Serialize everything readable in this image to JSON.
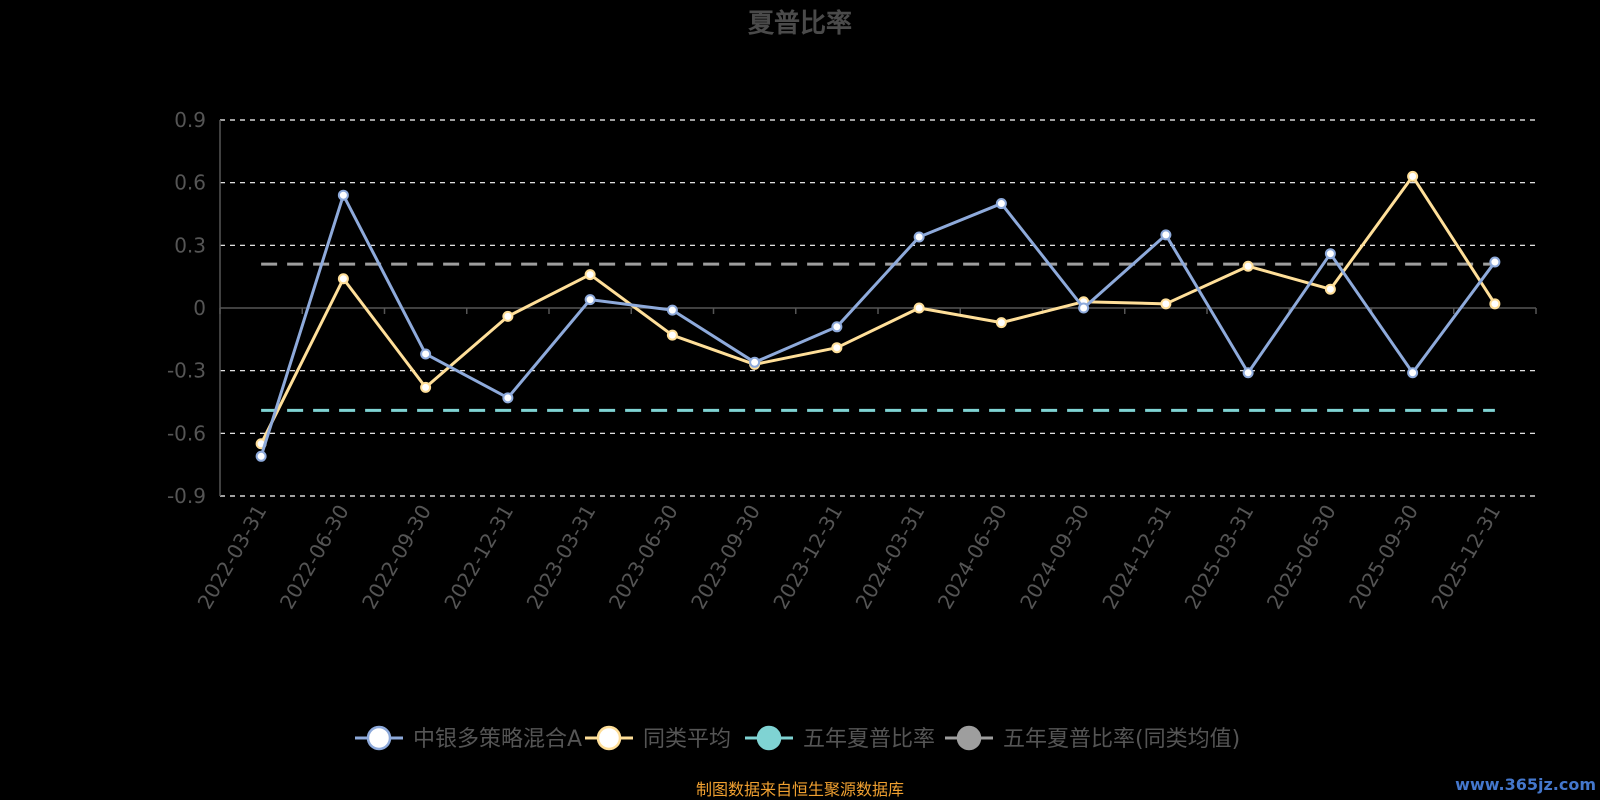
{
  "chart_data": {
    "type": "line",
    "title": "夏普比率",
    "categories": [
      "2022-03-31",
      "2022-06-30",
      "2022-09-30",
      "2022-12-31",
      "2023-03-31",
      "2023-06-30",
      "2023-09-30",
      "2023-12-31",
      "2024-03-31",
      "2024-06-30",
      "2024-09-30",
      "2024-12-31",
      "2025-03-31",
      "2025-06-30",
      "2025-09-30",
      "2025-12-31"
    ],
    "y_ticks": [
      "0.9",
      "0.6",
      "0.3",
      "0",
      "-0.3",
      "-0.6",
      "-0.9"
    ],
    "ylim": [
      -0.9,
      0.9
    ],
    "grid": true,
    "legend_position": "bottom",
    "series": [
      {
        "name": "中银多策略混合A",
        "color": "#8eaadb",
        "values": [
          -0.71,
          0.54,
          -0.22,
          -0.43,
          0.04,
          -0.01,
          -0.26,
          -0.09,
          0.34,
          0.5,
          0.0,
          0.35,
          -0.31,
          0.26,
          -0.31,
          0.22
        ]
      },
      {
        "name": "同类平均",
        "color": "#ffdf99",
        "values": [
          -0.65,
          0.14,
          -0.38,
          -0.04,
          0.16,
          -0.13,
          -0.27,
          -0.19,
          0.0,
          -0.07,
          0.03,
          0.02,
          0.2,
          0.09,
          0.63,
          0.02
        ]
      }
    ],
    "reference_lines": [
      {
        "name": "五年夏普比率",
        "color": "#7fd3d3",
        "value": -0.49
      },
      {
        "name": "五年夏普比率(同类均值)",
        "color": "#9e9e9e",
        "value": 0.21
      }
    ]
  },
  "legend": [
    {
      "label": "中银多策略混合A",
      "color": "#8eaadb",
      "fill": "#ffffff"
    },
    {
      "label": "同类平均",
      "color": "#ffdf99",
      "fill": "#ffffff"
    },
    {
      "label": "五年夏普比率",
      "color": "#7fd3d3",
      "fill": "#7fd3d3"
    },
    {
      "label": "五年夏普比率(同类均值)",
      "color": "#9e9e9e",
      "fill": "#9e9e9e"
    }
  ],
  "footer": {
    "source": "制图数据来自恒生聚源数据库",
    "watermark": "www.365jz.com"
  }
}
